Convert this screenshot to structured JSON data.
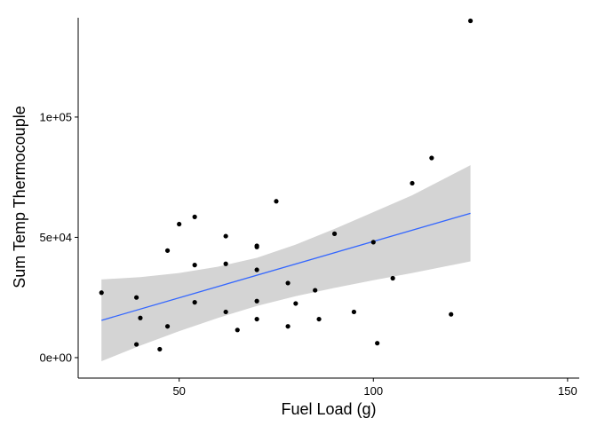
{
  "chart_data": {
    "type": "scatter",
    "title": "",
    "xlabel": "Fuel Load (g)",
    "ylabel": "Sum Temp Thermocouple",
    "xlim": [
      24,
      153
    ],
    "ylim": [
      -8500,
      143500
    ],
    "x_ticks": [
      {
        "value": 50,
        "label": "50"
      },
      {
        "value": 100,
        "label": "100"
      },
      {
        "value": 150,
        "label": "150"
      }
    ],
    "y_ticks": [
      {
        "value": 0,
        "label": "0e+00"
      },
      {
        "value": 50000,
        "label": "5e+04"
      },
      {
        "value": 100000,
        "label": "1e+05"
      }
    ],
    "grid": false,
    "legend": "none",
    "colors": {
      "points": "#000000",
      "fit_line": "#3366ff",
      "ribbon": "#d4d4d4",
      "axis": "#000000"
    },
    "points": [
      {
        "x": 30,
        "y": 27000
      },
      {
        "x": 39,
        "y": 25000
      },
      {
        "x": 39,
        "y": 5500
      },
      {
        "x": 40,
        "y": 16500
      },
      {
        "x": 45,
        "y": 3500
      },
      {
        "x": 47,
        "y": 44500
      },
      {
        "x": 47,
        "y": 13000
      },
      {
        "x": 50,
        "y": 55500
      },
      {
        "x": 54,
        "y": 58500
      },
      {
        "x": 54,
        "y": 38500
      },
      {
        "x": 54,
        "y": 23000
      },
      {
        "x": 62,
        "y": 50500
      },
      {
        "x": 62,
        "y": 39000
      },
      {
        "x": 62,
        "y": 19000
      },
      {
        "x": 65,
        "y": 11500
      },
      {
        "x": 70,
        "y": 46500
      },
      {
        "x": 70,
        "y": 46000
      },
      {
        "x": 70,
        "y": 36500
      },
      {
        "x": 70,
        "y": 23500
      },
      {
        "x": 70,
        "y": 16000
      },
      {
        "x": 75,
        "y": 65000
      },
      {
        "x": 78,
        "y": 31000
      },
      {
        "x": 78,
        "y": 13000
      },
      {
        "x": 80,
        "y": 22500
      },
      {
        "x": 85,
        "y": 28000
      },
      {
        "x": 86,
        "y": 16000
      },
      {
        "x": 90,
        "y": 51500
      },
      {
        "x": 95,
        "y": 19000
      },
      {
        "x": 100,
        "y": 48000
      },
      {
        "x": 101,
        "y": 6000
      },
      {
        "x": 105,
        "y": 33000
      },
      {
        "x": 110,
        "y": 72500
      },
      {
        "x": 115,
        "y": 83000
      },
      {
        "x": 120,
        "y": 18000
      },
      {
        "x": 125,
        "y": 140000
      }
    ],
    "fit": {
      "x": [
        30,
        125
      ],
      "y": [
        15500,
        60000
      ]
    },
    "ribbon": {
      "x": [
        30,
        40,
        50,
        60,
        70,
        80,
        90,
        100,
        110,
        125
      ],
      "upper": [
        32500,
        33500,
        35200,
        37800,
        41500,
        47000,
        53500,
        60500,
        67500,
        80000
      ],
      "lower": [
        -1500,
        5000,
        11000,
        16500,
        21500,
        25500,
        29000,
        32200,
        35200,
        40000
      ]
    }
  }
}
